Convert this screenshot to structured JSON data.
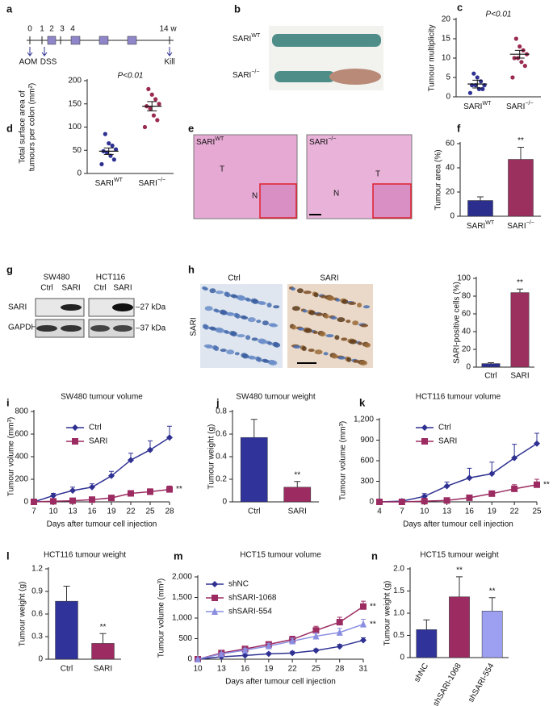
{
  "figure": {
    "a": {
      "label": "a",
      "ticks": [
        "0",
        "1",
        "2",
        "3",
        "4",
        "14 w"
      ],
      "events": [
        "AOM",
        "DSS",
        "Kill"
      ]
    },
    "b": {
      "label": "b",
      "rows": [
        "SARIWT",
        "SARI−/−"
      ]
    },
    "e": {
      "label": "e",
      "images": [
        "SARIWT",
        "SARI−/−"
      ],
      "regions": [
        "T",
        "N",
        "T",
        "N"
      ]
    },
    "g": {
      "label": "g",
      "cell_lines": [
        "SW480",
        "HCT116"
      ],
      "lanes": [
        "Ctrl",
        "SARI",
        "Ctrl",
        "SARI"
      ],
      "proteins": [
        "SARI",
        "GAPDH"
      ],
      "sizes": [
        "–27 kDa",
        "–37 kDa"
      ]
    },
    "h": {
      "label": "h",
      "images": [
        "Ctrl",
        "SARI"
      ],
      "row": "SARI"
    }
  },
  "chart_data": [
    {
      "type": "strip",
      "label": "c",
      "title": "P<0.01",
      "ylabel": [
        "Tumour multiplicity"
      ],
      "categories": [
        "SARIWT",
        "SARI−/−"
      ],
      "groups": [
        {
          "color": "#2e3192",
          "values": [
            1,
            2,
            2,
            3,
            3,
            3,
            4,
            5,
            6
          ],
          "mean": 3.3,
          "sem": 1
        },
        {
          "color": "#9b2b50",
          "values": [
            5,
            8,
            9,
            10,
            10,
            11,
            12,
            13,
            15
          ],
          "mean": 11,
          "sem": 1
        }
      ],
      "ylim": [
        0,
        20
      ],
      "yticks": [
        0,
        5,
        10,
        15,
        20
      ]
    },
    {
      "type": "strip",
      "label": "d",
      "title": "P<0.01",
      "ylabel": [
        "Total surface area of",
        "tumours per colon (mm²)"
      ],
      "categories": [
        "SARIWT",
        "SARI−/−"
      ],
      "groups": [
        {
          "color": "#2e3192",
          "values": [
            20,
            30,
            38,
            45,
            48,
            52,
            60,
            65,
            85
          ],
          "mean": 48,
          "sem": 7
        },
        {
          "color": "#9b2b50",
          "values": [
            100,
            115,
            125,
            140,
            145,
            150,
            160,
            170,
            182
          ],
          "mean": 145,
          "sem": 10
        }
      ],
      "ylim": [
        0,
        200
      ],
      "yticks": [
        0,
        50,
        100,
        150,
        200
      ]
    },
    {
      "type": "bar",
      "label": "f",
      "ylabel": [
        "Tumour area (%)"
      ],
      "categories": [
        "SARIWT",
        "SARI−/−"
      ],
      "values": [
        13,
        47
      ],
      "errors": [
        3,
        10
      ],
      "colors": [
        "#2b2e8c",
        "#9b2f5e"
      ],
      "annotations": [
        null,
        "**"
      ],
      "ylim": [
        0,
        60
      ],
      "yticks": [
        0,
        20,
        40,
        60
      ]
    },
    {
      "type": "bar",
      "ylabel": [
        "SARI-positive cells (%)"
      ],
      "categories": [
        "Ctrl",
        "SARI"
      ],
      "values": [
        4,
        84
      ],
      "errors": [
        1,
        4
      ],
      "colors": [
        "#2b2e8c",
        "#9b2f5e"
      ],
      "annotations": [
        null,
        "**"
      ],
      "ylim": [
        0,
        100
      ],
      "yticks": [
        0,
        20,
        40,
        60,
        80,
        100
      ]
    },
    {
      "type": "line",
      "label": "i",
      "title": "SW480 tumour volume",
      "ylabel": [
        "Tumour volume (mm³)"
      ],
      "xlabel": "Days after tumour cell injection",
      "x": [
        7,
        10,
        13,
        16,
        19,
        22,
        25,
        28
      ],
      "series": [
        {
          "name": "Ctrl",
          "color": "#2e3192",
          "marker": "diamond",
          "values": [
            0,
            55,
            100,
            130,
            230,
            370,
            460,
            570
          ],
          "errors": [
            5,
            20,
            30,
            30,
            40,
            60,
            80,
            100
          ]
        },
        {
          "name": "SARI",
          "color": "#9b2b61",
          "marker": "square",
          "values": [
            0,
            5,
            10,
            20,
            35,
            75,
            90,
            110
          ],
          "errors": [
            0,
            5,
            5,
            10,
            10,
            20,
            25,
            30
          ],
          "annotation": "**"
        }
      ],
      "xlim": [
        7,
        28
      ],
      "xticks": [
        7,
        10,
        13,
        16,
        19,
        22,
        25,
        28
      ],
      "ylim": [
        0,
        800
      ],
      "yticks": [
        0,
        200,
        400,
        600,
        800
      ]
    },
    {
      "type": "bar",
      "label": "j",
      "title": "SW480 tumour weight",
      "ylabel": [
        "Tumour weight (g)"
      ],
      "categories": [
        "Ctrl",
        "SARI"
      ],
      "values": [
        0.57,
        0.13
      ],
      "errors": [
        0.16,
        0.05
      ],
      "colors": [
        "#30339a",
        "#9b2b61"
      ],
      "annotations": [
        null,
        "**"
      ],
      "ylim": [
        0,
        0.8
      ],
      "yticks": [
        0,
        0.2,
        0.4,
        0.6,
        0.8
      ]
    },
    {
      "type": "line",
      "label": "k",
      "title": "HCT116 tumour volume",
      "ylabel": [
        "Tumour volume (mm³)"
      ],
      "xlabel": "Days after tumour cell injection",
      "x": [
        4,
        7,
        10,
        13,
        16,
        19,
        22,
        25
      ],
      "series": [
        {
          "name": "Ctrl",
          "color": "#2e3192",
          "marker": "diamond",
          "values": [
            0,
            10,
            80,
            230,
            350,
            410,
            640,
            850
          ],
          "errors": [
            5,
            10,
            40,
            60,
            140,
            170,
            200,
            150
          ]
        },
        {
          "name": "SARI",
          "color": "#9b2b61",
          "marker": "square",
          "values": [
            0,
            0,
            10,
            20,
            60,
            120,
            190,
            250
          ],
          "errors": [
            0,
            0,
            10,
            20,
            30,
            40,
            60,
            80
          ],
          "annotation": "**"
        }
      ],
      "xlim": [
        4,
        25
      ],
      "xticks": [
        4,
        7,
        10,
        13,
        16,
        19,
        22,
        25
      ],
      "ylim": [
        0,
        1200
      ],
      "yticks": [
        0,
        300,
        600,
        900,
        {
          "value": 1200,
          "label": "1,200"
        }
      ]
    },
    {
      "type": "bar",
      "label": "l",
      "title": "HCT116 tumour weight",
      "ylabel": [
        "Tumour weight (g)"
      ],
      "categories": [
        "Ctrl",
        "SARI"
      ],
      "values": [
        0.77,
        0.21
      ],
      "errors": [
        0.2,
        0.13
      ],
      "colors": [
        "#30339a",
        "#9b2b61"
      ],
      "annotations": [
        null,
        "**"
      ],
      "ylim": [
        0,
        1.2
      ],
      "yticks": [
        0,
        0.3,
        0.6,
        0.9,
        1.2
      ]
    },
    {
      "type": "line",
      "label": "m",
      "title": "HCT15 tumour volume",
      "ylabel": [
        "Tumour volume (mm³)"
      ],
      "xlabel": "Days after tumour cell injection",
      "x": [
        10,
        13,
        16,
        19,
        22,
        25,
        28,
        31
      ],
      "series": [
        {
          "name": "shNC",
          "color": "#2e3192",
          "marker": "diamond",
          "values": [
            0,
            60,
            90,
            130,
            150,
            210,
            310,
            460
          ],
          "errors": [
            10,
            20,
            30,
            30,
            40,
            40,
            50,
            60
          ]
        },
        {
          "name": "shSARI-1068",
          "color": "#9b2b61",
          "marker": "square",
          "values": [
            0,
            150,
            250,
            360,
            480,
            700,
            900,
            1280
          ],
          "errors": [
            10,
            30,
            50,
            60,
            80,
            100,
            120,
            130
          ],
          "annotation": "**"
        },
        {
          "name": "shSARI-554",
          "color": "#8a8ee0",
          "marker": "triangle",
          "values": [
            0,
            130,
            220,
            320,
            440,
            560,
            650,
            850
          ],
          "errors": [
            10,
            30,
            40,
            60,
            70,
            80,
            100,
            120
          ],
          "annotation": "**"
        }
      ],
      "xlim": [
        10,
        31
      ],
      "xticks": [
        10,
        13,
        16,
        19,
        22,
        25,
        28,
        31
      ],
      "ylim": [
        0,
        2000
      ],
      "yticks": [
        0,
        500,
        {
          "value": 1000,
          "label": "1,000"
        },
        {
          "value": 1500,
          "label": "1,500"
        },
        {
          "value": 2000,
          "label": "2,000"
        }
      ]
    },
    {
      "type": "bar",
      "label": "n",
      "title": "HCT15 tumour weight",
      "ylabel": [
        "Tumour weight (g)"
      ],
      "categories": [
        "shNC",
        "shSARI-1068",
        "shSARI-554"
      ],
      "values": [
        0.63,
        1.37,
        1.05
      ],
      "errors": [
        0.22,
        0.45,
        0.3
      ],
      "colors": [
        "#30339a",
        "#9b2b61",
        "#9da0f0"
      ],
      "annotations": [
        null,
        "**",
        "**"
      ],
      "ylim": [
        0,
        2
      ],
      "yticks": [
        0,
        0.5,
        {
          "value": 1,
          "label": "1.0"
        },
        1.5,
        {
          "value": 2,
          "label": "2.0"
        }
      ],
      "rotate_categories": true
    }
  ]
}
